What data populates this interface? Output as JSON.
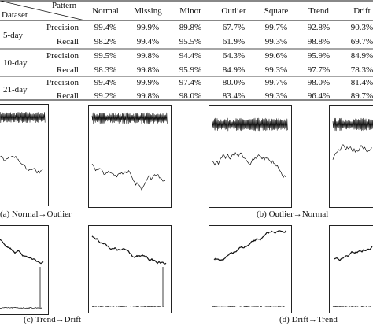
{
  "table": {
    "header_pattern": "Pattern",
    "header_dataset": "Dataset",
    "columns": [
      "Normal",
      "Missing",
      "Minor",
      "Outlier",
      "Square",
      "Trend",
      "Drift"
    ],
    "groups": [
      {
        "dataset": "5-day",
        "rows": [
          {
            "metric": "Precision",
            "values": [
              "99.4%",
              "99.9%",
              "89.8%",
              "67.7%",
              "99.7%",
              "92.8%",
              "90.3%"
            ]
          },
          {
            "metric": "Recall",
            "values": [
              "98.2%",
              "99.4%",
              "95.5%",
              "61.9%",
              "99.3%",
              "98.8%",
              "69.7%"
            ]
          }
        ]
      },
      {
        "dataset": "10-day",
        "rows": [
          {
            "metric": "Precision",
            "values": [
              "99.5%",
              "99.8%",
              "94.4%",
              "64.3%",
              "99.6%",
              "95.9%",
              "84.9%"
            ]
          },
          {
            "metric": "Recall",
            "values": [
              "98.3%",
              "99.8%",
              "95.9%",
              "84.9%",
              "99.3%",
              "97.7%",
              "78.3%"
            ]
          }
        ]
      },
      {
        "dataset": "21-day",
        "rows": [
          {
            "metric": "Precision",
            "values": [
              "99.4%",
              "99.9%",
              "97.4%",
              "80.0%",
              "99.7%",
              "98.0%",
              "81.4%"
            ]
          },
          {
            "metric": "Recall",
            "values": [
              "99.2%",
              "99.8%",
              "98.0%",
              "83.4%",
              "99.3%",
              "96.4%",
              "89.7%"
            ]
          }
        ]
      }
    ]
  },
  "captions": {
    "a": "(a) Normal→Outlier",
    "b": "(b) Outlier→Normal",
    "c": "(c) Trend→Drift",
    "d": "(d) Drift→Trend"
  }
}
